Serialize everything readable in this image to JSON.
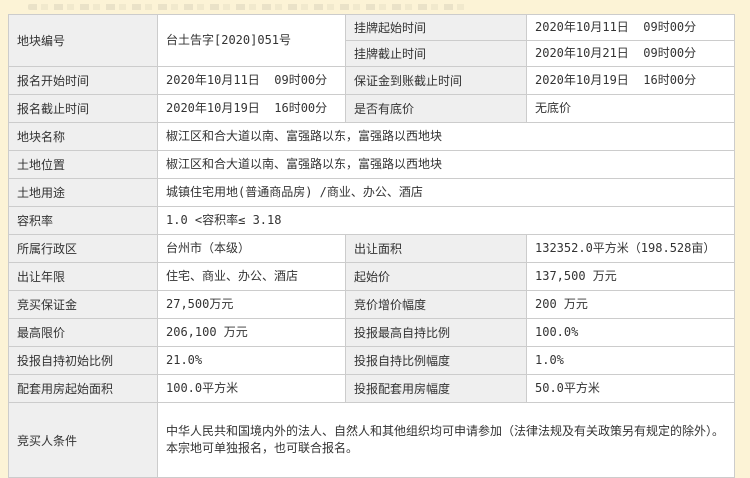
{
  "page": {
    "background_color": "#fcf3d6",
    "label_cell_color": "#efefef",
    "value_cell_color": "#ffffff",
    "border_color": "#cccccc"
  },
  "fields": {
    "plot_number": {
      "label": "地块编号",
      "value": "台土告字[2020]051号"
    },
    "listing_start": {
      "label": "挂牌起始时间",
      "value": "2020年10月11日  09时00分"
    },
    "listing_end": {
      "label": "挂牌截止时间",
      "value": "2020年10月21日  09时00分"
    },
    "signup_start": {
      "label": "报名开始时间",
      "value": "2020年10月11日  09时00分"
    },
    "deposit_deadline": {
      "label": "保证金到账截止时间",
      "value": "2020年10月19日  16时00分"
    },
    "signup_end": {
      "label": "报名截止时间",
      "value": "2020年10月19日  16时00分"
    },
    "has_reserve_price": {
      "label": "是否有底价",
      "value": "无底价"
    },
    "plot_name": {
      "label": "地块名称",
      "value": "椒江区和合大道以南、富强路以东，富强路以西地块"
    },
    "land_location": {
      "label": "土地位置",
      "value": "椒江区和合大道以南、富强路以东，富强路以西地块"
    },
    "land_use": {
      "label": "土地用途",
      "value": "城镇住宅用地(普通商品房) /商业、办公、酒店"
    },
    "plot_ratio": {
      "label": "容积率",
      "value": "1.0 <容积率≤ 3.18"
    },
    "admin_region": {
      "label": "所属行政区",
      "value": "台州市（本级）"
    },
    "transfer_area": {
      "label": "出让面积",
      "value": "132352.0平方米（198.528亩）"
    },
    "transfer_term": {
      "label": "出让年限",
      "value": "住宅、商业、办公、酒店"
    },
    "start_price": {
      "label": "起始价",
      "value": "137,500 万元"
    },
    "bid_deposit": {
      "label": "竞买保证金",
      "value": "27,500万元"
    },
    "bid_increment": {
      "label": "竞价增价幅度",
      "value": "200 万元"
    },
    "max_price": {
      "label": "最高限价",
      "value": "206,100 万元"
    },
    "max_self_hold_ratio": {
      "label": "投报最高自持比例",
      "value": "100.0%"
    },
    "init_self_hold_ratio": {
      "label": "投报自持初始比例",
      "value": "21.0%"
    },
    "self_hold_ratio_step": {
      "label": "投报自持比例幅度",
      "value": "1.0%"
    },
    "support_house_start_area": {
      "label": "配套用房起始面积",
      "value": "100.0平方米"
    },
    "support_house_step": {
      "label": "投报配套用房幅度",
      "value": "50.0平方米"
    },
    "bidder_conditions": {
      "label": "竞买人条件",
      "value": "中华人民共和国境内外的法人、自然人和其他组织均可申请参加（法律法规及有关政策另有规定的除外）。本宗地可单独报名，也可联合报名。"
    }
  }
}
